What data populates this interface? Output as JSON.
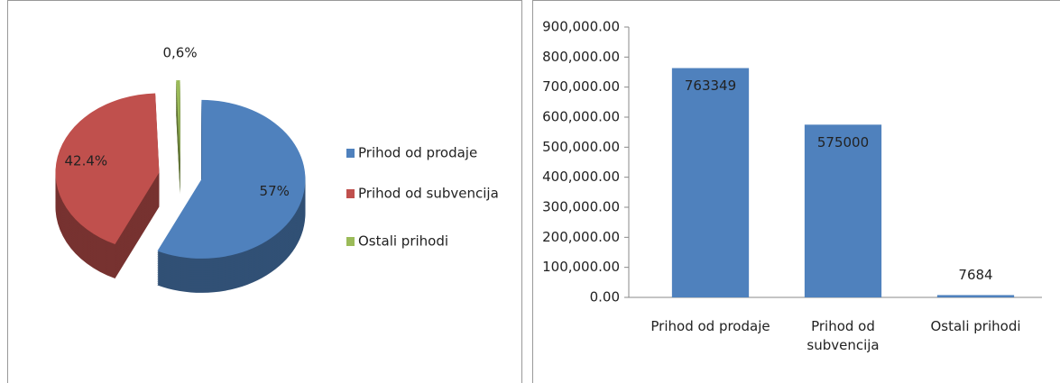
{
  "chart_data": [
    {
      "type": "pie",
      "categories": [
        "Prihod od prodaje",
        "Prihod od subvencija",
        "Ostali prihodi"
      ],
      "values": [
        57,
        42.4,
        0.6
      ],
      "value_labels": [
        "57%",
        "42.4%",
        "0,6%"
      ],
      "colors": [
        "#4f81bd",
        "#c0504d",
        "#9bbb59"
      ],
      "legend": "right"
    },
    {
      "type": "bar",
      "categories": [
        "Prihod od prodaje",
        "Prihod od\nsubvencija",
        "Ostali prihodi"
      ],
      "values": [
        763349,
        575000,
        7684
      ],
      "color": "#4f81bd",
      "ylim": [
        0,
        900000
      ],
      "yticks": [
        {
          "value": 0,
          "label": "0.00"
        },
        {
          "value": 100000,
          "label": "100,000.00"
        },
        {
          "value": 200000,
          "label": "200,000.00"
        },
        {
          "value": 300000,
          "label": "300,000.00"
        },
        {
          "value": 400000,
          "label": "400,000.00"
        },
        {
          "value": 500000,
          "label": "500,000.00"
        },
        {
          "value": 600000,
          "label": "600,000.00"
        },
        {
          "value": 700000,
          "label": "700,000.00"
        },
        {
          "value": 800000,
          "label": "800,000.00"
        },
        {
          "value": 900000,
          "label": "900,000.00"
        }
      ],
      "grid": false
    }
  ]
}
